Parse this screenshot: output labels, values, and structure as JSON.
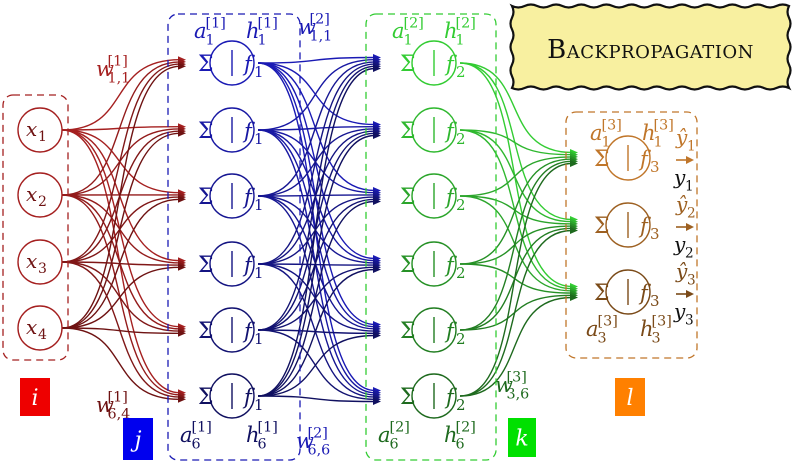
{
  "title": "Backpropagation",
  "colors": {
    "input": "#a52020",
    "input_dark": "#6e1212",
    "layer1": "#1a1ab4",
    "layer1_dark": "#101060",
    "layer2": "#33cc33",
    "layer2_dark": "#1e6a1e",
    "layer3": "#c0762a",
    "layer3_dark": "#7a4a18",
    "title_fill": "#f8f0a0",
    "label_i": "#ee0000",
    "label_j": "#0000ee",
    "label_k": "#00e000",
    "label_l": "#ff8000"
  },
  "node": {
    "sum_symbol": "Σ",
    "separator": "|",
    "activation": "f"
  },
  "input_nodes": [
    {
      "base": "x",
      "sub": "1"
    },
    {
      "base": "x",
      "sub": "2"
    },
    {
      "base": "x",
      "sub": "3"
    },
    {
      "base": "x",
      "sub": "4"
    }
  ],
  "layers": [
    {
      "index_label": "i",
      "nodes": 4
    },
    {
      "index_label": "j",
      "nodes": 6,
      "activation_sub": "1"
    },
    {
      "index_label": "k",
      "nodes": 6,
      "activation_sub": "2"
    },
    {
      "index_label": "l",
      "nodes": 3,
      "activation_sub": "3"
    }
  ],
  "annotations": {
    "w1_11": {
      "base": "w",
      "sup": "[1]",
      "sub": "1,1"
    },
    "w1_64": {
      "base": "w",
      "sup": "[1]",
      "sub": "6,4"
    },
    "w2_11": {
      "base": "w",
      "sup": "[2]",
      "sub": "1,1"
    },
    "w2_66": {
      "base": "w",
      "sup": "[2]",
      "sub": "6,6"
    },
    "w3_36": {
      "base": "w",
      "sup": "[3]",
      "sub": "3,6"
    },
    "a1_1": {
      "base": "a",
      "sup": "[1]",
      "sub": "1"
    },
    "h1_1": {
      "base": "h",
      "sup": "[1]",
      "sub": "1"
    },
    "a1_6": {
      "base": "a",
      "sup": "[1]",
      "sub": "6"
    },
    "h1_6": {
      "base": "h",
      "sup": "[1]",
      "sub": "6"
    },
    "a2_1": {
      "base": "a",
      "sup": "[2]",
      "sub": "1"
    },
    "h2_1": {
      "base": "h",
      "sup": "[2]",
      "sub": "1"
    },
    "a2_6": {
      "base": "a",
      "sup": "[2]",
      "sub": "6"
    },
    "h2_6": {
      "base": "h",
      "sup": "[2]",
      "sub": "6"
    },
    "a3_1": {
      "base": "a",
      "sup": "[3]",
      "sub": "1"
    },
    "h3_1": {
      "base": "h",
      "sup": "[3]",
      "sub": "1"
    },
    "a3_3": {
      "base": "a",
      "sup": "[3]",
      "sub": "3"
    },
    "h3_3": {
      "base": "h",
      "sup": "[3]",
      "sub": "3"
    }
  },
  "outputs": [
    {
      "predicted": {
        "base": "ŷ",
        "sub": "1"
      },
      "target": {
        "base": "y",
        "sub": "1"
      }
    },
    {
      "predicted": {
        "base": "ŷ",
        "sub": "2"
      },
      "target": {
        "base": "y",
        "sub": "2"
      }
    },
    {
      "predicted": {
        "base": "ŷ",
        "sub": "3"
      },
      "target": {
        "base": "y",
        "sub": "3"
      }
    }
  ]
}
